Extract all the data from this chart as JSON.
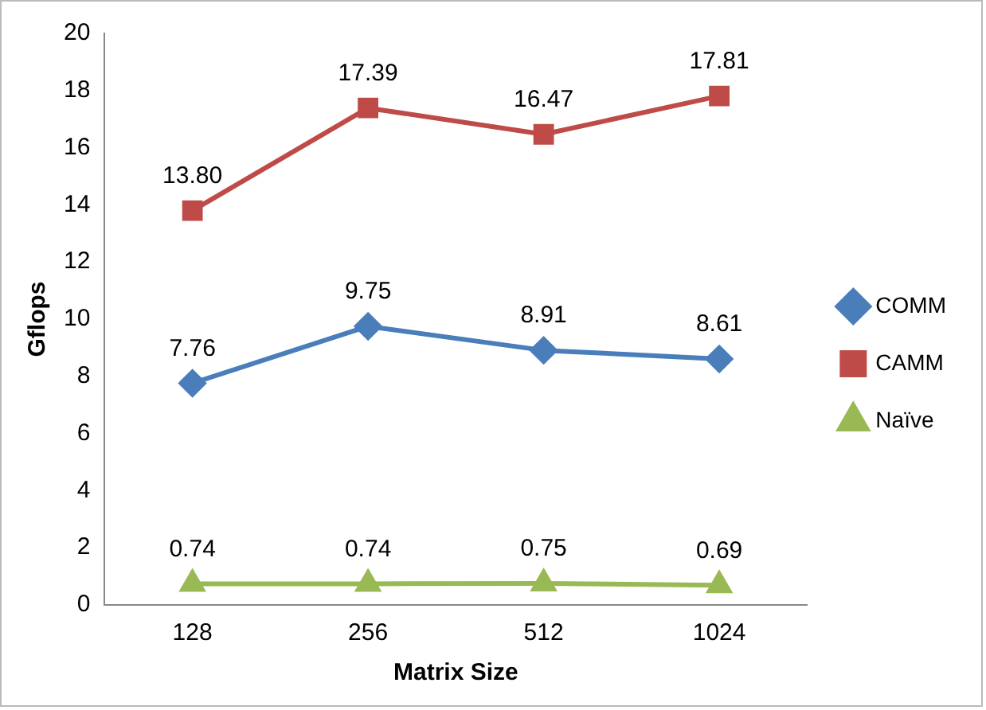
{
  "chart_data": {
    "type": "line",
    "xlabel": "Matrix Size",
    "ylabel": "Gflops",
    "categories": [
      "128",
      "256",
      "512",
      "1024"
    ],
    "series": [
      {
        "name": "COMM",
        "color": "#4a7ebb",
        "marker": "diamond",
        "values": [
          7.76,
          9.75,
          8.91,
          8.61
        ],
        "value_labels": [
          "7.76",
          "9.75",
          "8.91",
          "8.61"
        ]
      },
      {
        "name": "CAMM",
        "color": "#be4b48",
        "marker": "square",
        "values": [
          13.8,
          17.39,
          16.47,
          17.81
        ],
        "value_labels": [
          "13.80",
          "17.39",
          "16.47",
          "17.81"
        ]
      },
      {
        "name": "Naïve",
        "color": "#98b954",
        "marker": "triangle",
        "values": [
          0.74,
          0.74,
          0.75,
          0.69
        ],
        "value_labels": [
          "0.74",
          "0.74",
          "0.75",
          "0.69"
        ]
      }
    ],
    "ylim": [
      0,
      20
    ],
    "yticks": [
      0,
      2,
      4,
      6,
      8,
      10,
      12,
      14,
      16,
      18,
      20
    ],
    "grid": false,
    "legend": "right",
    "line_style": "solid"
  }
}
